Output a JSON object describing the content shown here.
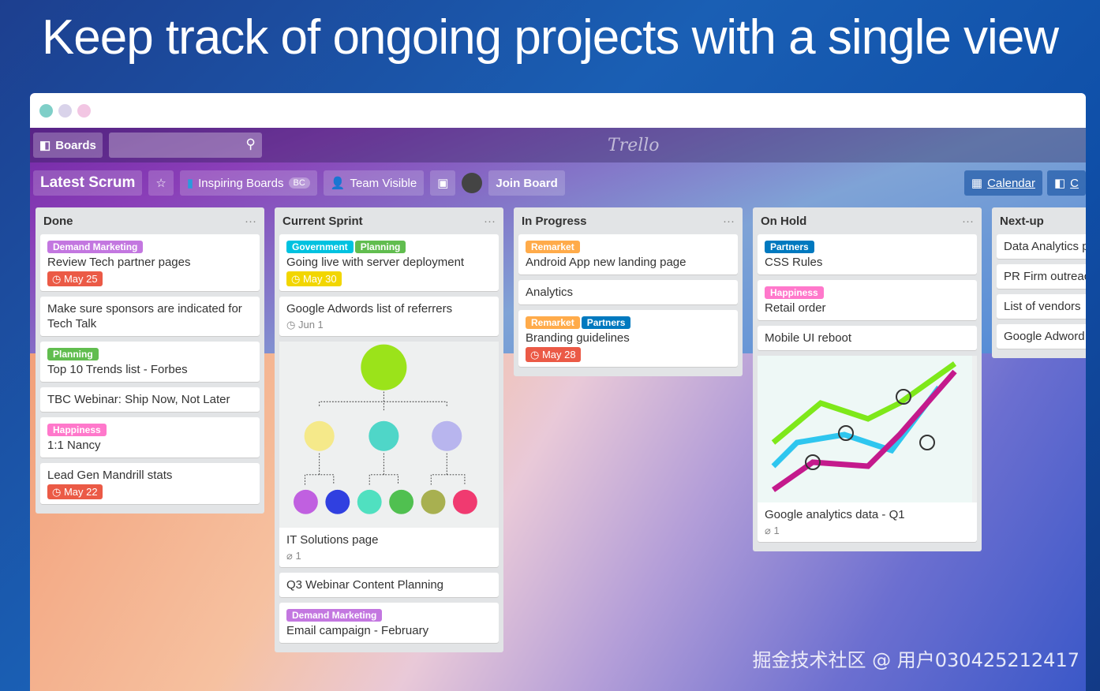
{
  "headline": "Keep track of ongoing projects with a single view",
  "colors": {
    "purple": "#c377e0",
    "green": "#61bd4f",
    "orange": "#ffab4a",
    "yellow": "#f2d600",
    "red": "#eb5a46",
    "blue": "#0079bf",
    "pink": "#ff78cb",
    "sky": "#00c2e0"
  },
  "topbar": {
    "boards": "Boards",
    "logo": "Trello"
  },
  "board": {
    "title": "Latest Scrum",
    "org": "Inspiring Boards",
    "org_badge": "BC",
    "visibility": "Team Visible",
    "join": "Join Board",
    "calendar": "Calendar",
    "more": "C"
  },
  "lists": [
    {
      "title": "Done",
      "cards": [
        {
          "labels": [
            {
              "t": "Demand Marketing",
              "c": "#c377e0"
            }
          ],
          "title": "Review Tech partner pages",
          "due": "May 25",
          "due_color": "#eb5a46"
        },
        {
          "title": "Make sure sponsors are indicated for Tech Talk"
        },
        {
          "labels": [
            {
              "t": "Planning",
              "c": "#61bd4f"
            }
          ],
          "title": "Top 10 Trends list - Forbes"
        },
        {
          "title": "TBC Webinar: Ship Now, Not Later"
        },
        {
          "labels": [
            {
              "t": "Happiness",
              "c": "#ff78cb"
            }
          ],
          "title": "1:1 Nancy"
        },
        {
          "title": "Lead Gen Mandrill stats",
          "due": "May 22",
          "due_color": "#eb5a46"
        }
      ]
    },
    {
      "title": "Current Sprint",
      "cards": [
        {
          "labels": [
            {
              "t": "Government",
              "c": "#00c2e0"
            },
            {
              "t": "Planning",
              "c": "#61bd4f"
            }
          ],
          "title": "Going live with server deployment",
          "due": "May 30",
          "due_color": "#f2d600"
        },
        {
          "title": "Google Adwords list of referrers",
          "meta": "Jun 1"
        },
        {
          "cover": "org",
          "title": "IT Solutions page",
          "meta": "1"
        },
        {
          "title": "Q3 Webinar Content Planning"
        },
        {
          "labels": [
            {
              "t": "Demand Marketing",
              "c": "#c377e0"
            }
          ],
          "title": "Email campaign - February"
        }
      ]
    },
    {
      "title": "In Progress",
      "cards": [
        {
          "labels": [
            {
              "t": "Remarket",
              "c": "#ffab4a"
            }
          ],
          "title": "Android App new landing page"
        },
        {
          "title": "Analytics"
        },
        {
          "labels": [
            {
              "t": "Remarket",
              "c": "#ffab4a"
            },
            {
              "t": "Partners",
              "c": "#0079bf"
            }
          ],
          "title": "Branding guidelines",
          "due": "May 28",
          "due_color": "#eb5a46"
        }
      ]
    },
    {
      "title": "On Hold",
      "cards": [
        {
          "labels": [
            {
              "t": "Partners",
              "c": "#0079bf"
            }
          ],
          "title": "CSS Rules"
        },
        {
          "labels": [
            {
              "t": "Happiness",
              "c": "#ff78cb"
            }
          ],
          "title": "Retail order"
        },
        {
          "title": "Mobile UI reboot"
        },
        {
          "cover": "chart",
          "title": "Google analytics data - Q1",
          "meta": "1"
        }
      ]
    },
    {
      "title": "Next-up",
      "cards": [
        {
          "title": "Data Analytics p"
        },
        {
          "title": "PR Firm outreac"
        },
        {
          "title": "List of vendors"
        },
        {
          "title": "Google Adword"
        }
      ]
    }
  ],
  "watermark": "掘金技术社区 @ 用户030425212417"
}
